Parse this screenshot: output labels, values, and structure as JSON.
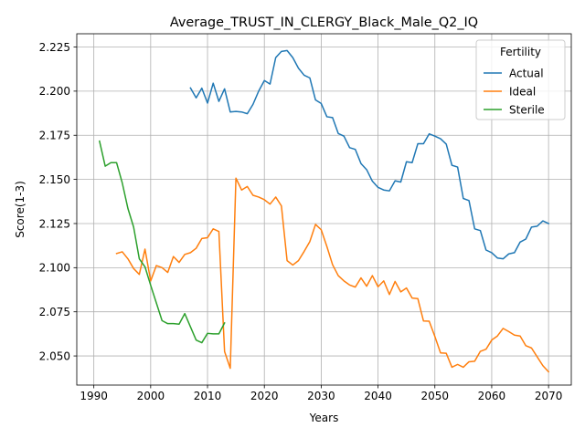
{
  "chart_data": {
    "type": "line",
    "title": "Average_TRUST_IN_CLERGY_Black_Male_Q2_IQ",
    "xlabel": "Years",
    "ylabel": "Score(1-3)",
    "xlim": [
      1987,
      2074
    ],
    "ylim": [
      2.0335,
      2.2325
    ],
    "xticks": [
      1990,
      2000,
      2010,
      2020,
      2030,
      2040,
      2050,
      2060,
      2070
    ],
    "yticks": [
      2.05,
      2.075,
      2.1,
      2.125,
      2.15,
      2.175,
      2.2,
      2.225
    ],
    "xtick_labels": [
      "1990",
      "2000",
      "2010",
      "2020",
      "2030",
      "2040",
      "2050",
      "2060",
      "2070"
    ],
    "ytick_labels": [
      "2.050",
      "2.075",
      "2.100",
      "2.125",
      "2.150",
      "2.175",
      "2.200",
      "2.225"
    ],
    "grid": true,
    "legend": {
      "title": "Fertility",
      "placement": "top-right"
    },
    "series": [
      {
        "name": "Actual",
        "color": "#1f77b4",
        "x": [
          2007,
          2008,
          2009,
          2010,
          2011,
          2012,
          2013,
          2014,
          2015,
          2016,
          2017,
          2018,
          2019,
          2020,
          2021,
          2022,
          2023,
          2024,
          2025,
          2026,
          2027,
          2028,
          2029,
          2030,
          2031,
          2032,
          2033,
          2034,
          2035,
          2036,
          2037,
          2038,
          2039,
          2040,
          2041,
          2042,
          2043,
          2044,
          2045,
          2046,
          2047,
          2048,
          2049,
          2050,
          2051,
          2052,
          2053,
          2054,
          2055,
          2056,
          2057,
          2058,
          2059,
          2060,
          2061,
          2062,
          2063,
          2064,
          2065,
          2066,
          2067,
          2068,
          2069,
          2070
        ],
        "y": [
          2.2018,
          2.1962,
          2.2017,
          2.1932,
          2.2045,
          2.1942,
          2.2013,
          2.1882,
          2.1885,
          2.1882,
          2.1872,
          2.1925,
          2.2,
          2.206,
          2.204,
          2.219,
          2.2225,
          2.223,
          2.219,
          2.213,
          2.209,
          2.2075,
          2.195,
          2.193,
          2.1855,
          2.185,
          2.176,
          2.1745,
          2.168,
          2.167,
          2.159,
          2.1555,
          2.149,
          2.1455,
          2.144,
          2.1435,
          2.1492,
          2.1485,
          2.16,
          2.1595,
          2.1702,
          2.1702,
          2.1758,
          2.1745,
          2.173,
          2.17,
          2.158,
          2.157,
          2.1392,
          2.138,
          2.122,
          2.121,
          2.11,
          2.1085,
          2.1055,
          2.105,
          2.1078,
          2.1085,
          2.1145,
          2.1162,
          2.123,
          2.1235,
          2.1265,
          2.125
        ]
      },
      {
        "name": "Ideal",
        "color": "#ff7f0e",
        "x": [
          1994,
          1995,
          1996,
          1997,
          1998,
          1999,
          2000,
          2001,
          2002,
          2003,
          2004,
          2005,
          2006,
          2007,
          2008,
          2009,
          2010,
          2011,
          2012,
          2013,
          2014,
          2015,
          2016,
          2017,
          2018,
          2019,
          2020,
          2021,
          2022,
          2023,
          2024,
          2025,
          2026,
          2027,
          2028,
          2029,
          2030,
          2031,
          2032,
          2033,
          2034,
          2035,
          2036,
          2037,
          2038,
          2039,
          2040,
          2041,
          2042,
          2043,
          2044,
          2045,
          2046,
          2047,
          2048,
          2049,
          2050,
          2051,
          2052,
          2053,
          2054,
          2055,
          2056,
          2057,
          2058,
          2059,
          2060,
          2061,
          2062,
          2063,
          2064,
          2065,
          2066,
          2067,
          2068,
          2069,
          2070
        ],
        "y": [
          2.108,
          2.109,
          2.105,
          2.0995,
          2.0962,
          2.1105,
          2.0925,
          2.1012,
          2.1,
          2.0973,
          2.1063,
          2.103,
          2.1075,
          2.1085,
          2.111,
          2.1165,
          2.117,
          2.122,
          2.1205,
          2.0525,
          2.043,
          2.1507,
          2.144,
          2.146,
          2.141,
          2.14,
          2.1385,
          2.136,
          2.14,
          2.135,
          2.104,
          2.1015,
          2.104,
          2.1092,
          2.1148,
          2.1245,
          2.1215,
          2.112,
          2.1017,
          2.0955,
          2.0925,
          2.0902,
          2.089,
          2.0942,
          2.0895,
          2.0955,
          2.0892,
          2.0925,
          2.0848,
          2.0922,
          2.0863,
          2.0885,
          2.0828,
          2.0825,
          2.0698,
          2.0697,
          2.061,
          2.0517,
          2.0515,
          2.0436,
          2.0452,
          2.0436,
          2.0467,
          2.047,
          2.0526,
          2.0538,
          2.059,
          2.0613,
          2.0656,
          2.0638,
          2.0618,
          2.0613,
          2.0558,
          2.0545,
          2.0495,
          2.0445,
          2.041
        ]
      },
      {
        "name": "Sterile",
        "color": "#2ca02c",
        "x": [
          1991,
          1992,
          1993,
          1994,
          1995,
          1996,
          1997,
          1998,
          1999,
          2000,
          2001,
          2002,
          2003,
          2004,
          2005,
          2006,
          2007,
          2008,
          2009,
          2010,
          2011,
          2012,
          2013
        ],
        "y": [
          2.1717,
          2.1575,
          2.1595,
          2.1595,
          2.148,
          2.1335,
          2.123,
          2.105,
          2.1005,
          2.09,
          2.08,
          2.07,
          2.0683,
          2.0683,
          2.068,
          2.074,
          2.0665,
          2.059,
          2.0575,
          2.0628,
          2.0625,
          2.0625,
          2.0687
        ]
      }
    ]
  }
}
